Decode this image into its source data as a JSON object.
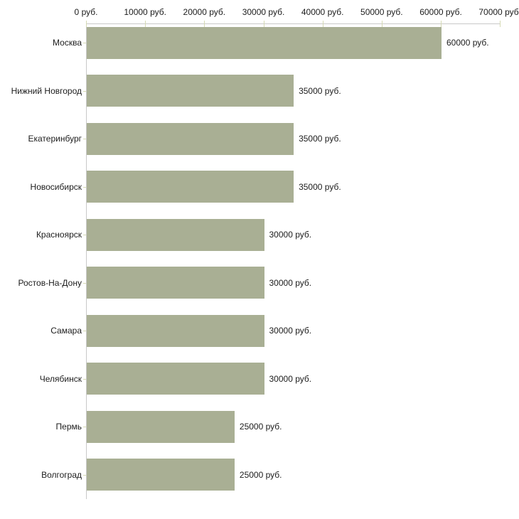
{
  "chart_data": {
    "type": "bar",
    "orientation": "horizontal",
    "title": "",
    "xlabel": "",
    "ylabel": "",
    "categories": [
      "Москва",
      "Нижний Новгород",
      "Екатеринбург",
      "Новосибирск",
      "Красноярск",
      "Ростов-На-Дону",
      "Самара",
      "Челябинск",
      "Пермь",
      "Волгоград"
    ],
    "values": [
      60000,
      35000,
      35000,
      35000,
      30000,
      30000,
      30000,
      30000,
      25000,
      25000
    ],
    "value_labels": [
      "60000 руб.",
      "35000 руб.",
      "35000 руб.",
      "35000 руб.",
      "30000 руб.",
      "30000 руб.",
      "30000 руб.",
      "30000 руб.",
      "25000 руб.",
      "25000 руб."
    ],
    "x_tick_values": [
      0,
      10000,
      20000,
      30000,
      40000,
      50000,
      60000,
      70000
    ],
    "x_tick_labels": [
      "0 руб.",
      "10000 руб.",
      "20000 руб.",
      "30000 руб.",
      "40000 руб.",
      "50000 руб.",
      "60000 руб.",
      "70000 руб."
    ],
    "xlim": [
      0,
      70000
    ],
    "grid": false,
    "legend": "none",
    "axis_position": "top",
    "colors": {
      "bar": "#a9af94",
      "axis_line": "#c9c9c9",
      "tick": "#d6dab4",
      "text": "#1c1c1c",
      "background": "#ffffff"
    }
  }
}
